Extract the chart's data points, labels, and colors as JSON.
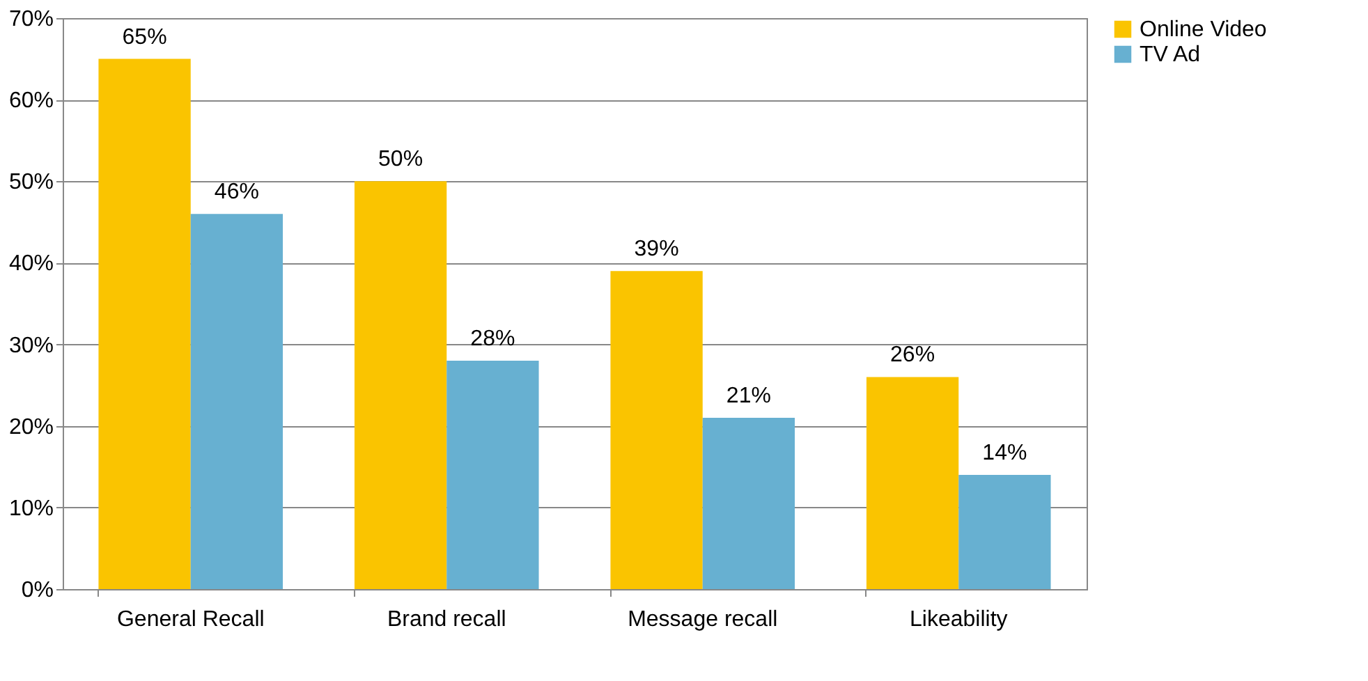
{
  "chart_data": {
    "type": "bar",
    "categories": [
      "General Recall",
      "Brand recall",
      "Message recall",
      "Likeability"
    ],
    "series": [
      {
        "name": "Online Video",
        "color": "#fac400",
        "values": [
          65,
          50,
          39,
          26
        ],
        "value_labels": [
          "65%",
          "50%",
          "39%",
          "26%"
        ]
      },
      {
        "name": "TV Ad",
        "color": "#67b0d1",
        "values": [
          46,
          28,
          21,
          14
        ],
        "value_labels": [
          "46%",
          "28%",
          "21%",
          "14%"
        ]
      }
    ],
    "ylim": [
      0,
      70
    ],
    "yticks": [
      {
        "value": 0,
        "label": "0%"
      },
      {
        "value": 10,
        "label": "10%"
      },
      {
        "value": 20,
        "label": "20%"
      },
      {
        "value": 30,
        "label": "30%"
      },
      {
        "value": 40,
        "label": "40%"
      },
      {
        "value": 50,
        "label": "50%"
      },
      {
        "value": 60,
        "label": "60%"
      },
      {
        "value": 70,
        "label": "70%"
      }
    ],
    "grid": "y",
    "legend": "right"
  }
}
